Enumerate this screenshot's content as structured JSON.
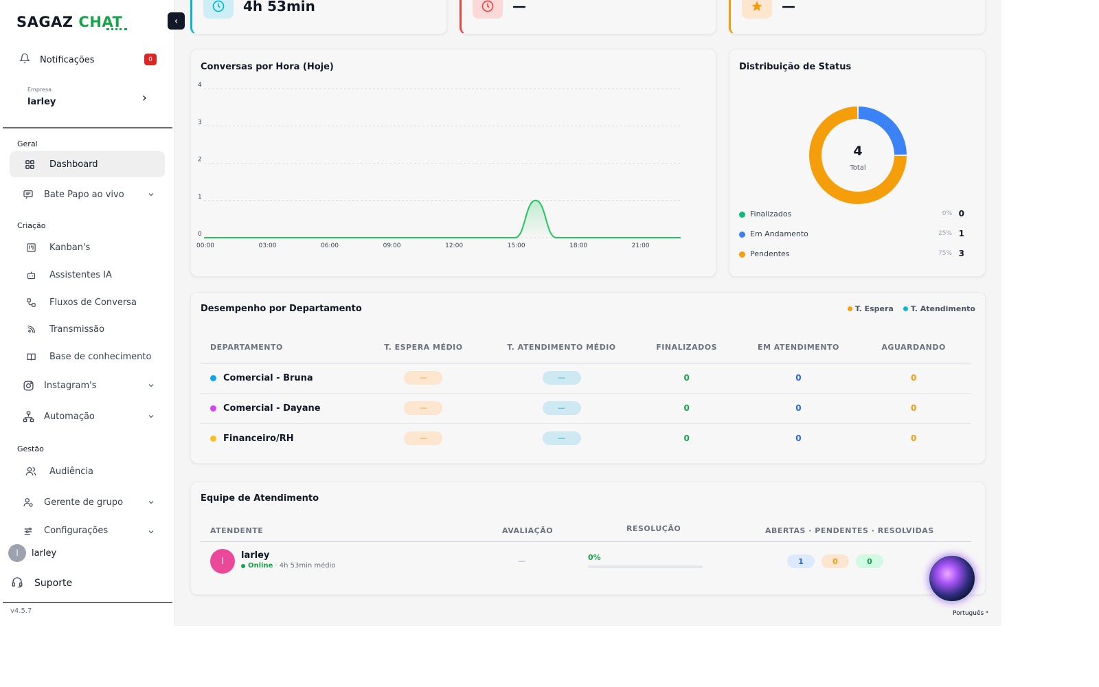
{
  "sidebar": {
    "logo_part1": "SAGAZ",
    "logo_part2": "CHAT",
    "collapse_label": "‹",
    "notifications": {
      "label": "Notificações",
      "count": "0"
    },
    "empresa": {
      "label": "Empresa",
      "value": "larley"
    },
    "section_geral": "Geral",
    "section_criacao": "Criação",
    "section_gestao": "Gestão",
    "items": {
      "dashboard": "Dashboard",
      "bate_papo": "Bate Papo ao vivo",
      "kanbans": "Kanban's",
      "assistentes": "Assistentes IA",
      "fluxos": "Fluxos de Conversa",
      "transmissao": "Transmissão",
      "base": "Base de conhecimento",
      "instagrams": "Instagram's",
      "automacao": "Automação",
      "audiencia": "Audiência",
      "gerente": "Gerente de grupo",
      "config": "Configurações"
    },
    "user": {
      "initial": "l",
      "name": "larley"
    },
    "support": "Suporte",
    "version": "v4.5.7"
  },
  "kpis": [
    {
      "value": "4h 53min",
      "color": "#06b6d4"
    },
    {
      "value": "—",
      "color": "#ef4444"
    },
    {
      "value": "—",
      "color": "#f59e0b"
    }
  ],
  "conversas": {
    "title": "Conversas por Hora (Hoje)"
  },
  "chart_data": {
    "type": "line",
    "title": "Conversas por Hora (Hoje)",
    "x": [
      "00:00",
      "01:00",
      "02:00",
      "03:00",
      "04:00",
      "05:00",
      "06:00",
      "07:00",
      "08:00",
      "09:00",
      "10:00",
      "11:00",
      "12:00",
      "13:00",
      "14:00",
      "15:00",
      "16:00",
      "17:00",
      "18:00",
      "19:00",
      "20:00",
      "21:00",
      "22:00",
      "23:00"
    ],
    "x_tick_labels": [
      "00:00",
      "03:00",
      "06:00",
      "09:00",
      "12:00",
      "15:00",
      "18:00",
      "21:00"
    ],
    "series": [
      {
        "values": [
          0,
          0,
          0,
          0,
          0,
          0,
          0,
          0,
          0,
          0,
          0,
          0,
          0,
          0,
          0,
          0,
          1,
          0,
          0,
          0,
          0,
          0,
          0,
          0
        ],
        "color": "#22c55e"
      }
    ],
    "ylim": [
      0,
      4
    ],
    "y_ticks": [
      0,
      1,
      2,
      3,
      4
    ],
    "grid": true
  },
  "status": {
    "title": "Distribuição de Status",
    "total": "4",
    "total_label": "Total",
    "items": [
      {
        "name": "Finalizados",
        "pct": "0%",
        "count": "0",
        "value": 0,
        "color": "#10b981"
      },
      {
        "name": "Em Andamento",
        "pct": "25%",
        "count": "1",
        "value": 1,
        "color": "#3b82f6"
      },
      {
        "name": "Pendentes",
        "pct": "75%",
        "count": "3",
        "value": 3,
        "color": "#f59e0b"
      }
    ]
  },
  "departments": {
    "title": "Desempenho por Departamento",
    "legend": [
      {
        "label": "T. Espera",
        "color": "#f59e0b"
      },
      {
        "label": "T. Atendimento",
        "color": "#06b6d4"
      }
    ],
    "headers": [
      "DEPARTAMENTO",
      "T. ESPERA MÉDIO",
      "T. ATENDIMENTO MÉDIO",
      "FINALIZADOS",
      "EM ATENDIMENTO",
      "AGUARDANDO"
    ],
    "rows": [
      {
        "name": "Comercial - Bruna",
        "color": "#0ea5e9",
        "espera": "—",
        "atendimento": "—",
        "finalizados": "0",
        "em_atendimento": "0",
        "aguardando": "0"
      },
      {
        "name": "Comercial - Dayane",
        "color": "#d946ef",
        "espera": "—",
        "atendimento": "—",
        "finalizados": "0",
        "em_atendimento": "0",
        "aguardando": "0"
      },
      {
        "name": "Financeiro/RH",
        "color": "#fbbf24",
        "espera": "—",
        "atendimento": "—",
        "finalizados": "0",
        "em_atendimento": "0",
        "aguardando": "0"
      }
    ]
  },
  "team": {
    "title": "Equipe de Atendimento",
    "headers": {
      "atendente": "ATENDENTE",
      "avaliacao": "AVALIAÇÃO",
      "resolucao": "RESOLUÇÃO",
      "contagens": "ABERTAS · PENDENTES · RESOLVIDAS"
    },
    "member": {
      "initial": "l",
      "name": "larley",
      "status": "Online",
      "detail": "· 4h 53min médio",
      "avaliacao": "—",
      "resolucao": "0%",
      "resolucao_value": 0,
      "abertas": "1",
      "pendentes": "0",
      "resolvidas": "0"
    }
  },
  "language": "Português"
}
